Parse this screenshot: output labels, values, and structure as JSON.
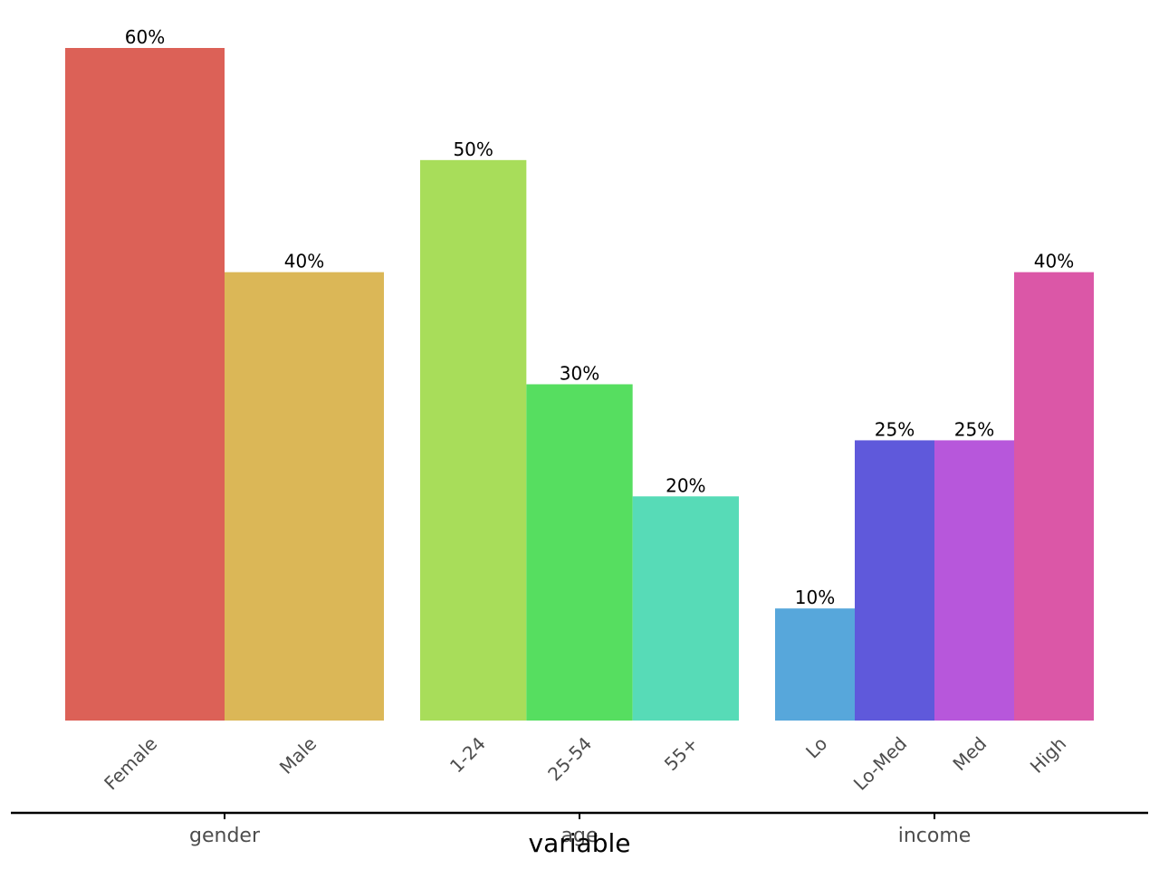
{
  "chart_data": {
    "type": "bar",
    "xlabel": "variable",
    "ylabel": "",
    "ylim": [
      0,
      60
    ],
    "grid": false,
    "value_suffix": "%",
    "groups": [
      {
        "name": "gender",
        "bars": [
          {
            "category": "Female",
            "value": 60,
            "label": "60%",
            "color": "#DC6157"
          },
          {
            "category": "Male",
            "value": 40,
            "label": "40%",
            "color": "#DBB757"
          }
        ]
      },
      {
        "name": "age",
        "bars": [
          {
            "category": "1-24",
            "value": 50,
            "label": "50%",
            "color": "#A8DD5A"
          },
          {
            "category": "25-54",
            "value": 30,
            "label": "30%",
            "color": "#56DE60"
          },
          {
            "category": "55+",
            "value": 20,
            "label": "20%",
            "color": "#57DBB7"
          }
        ]
      },
      {
        "name": "income",
        "bars": [
          {
            "category": "Lo",
            "value": 10,
            "label": "10%",
            "color": "#57A7DB"
          },
          {
            "category": "Lo-Med",
            "value": 25,
            "label": "25%",
            "color": "#5F59DB"
          },
          {
            "category": "Med",
            "value": 25,
            "label": "25%",
            "color": "#B757DB"
          },
          {
            "category": "High",
            "value": 40,
            "label": "40%",
            "color": "#DB57A7"
          }
        ]
      }
    ]
  }
}
